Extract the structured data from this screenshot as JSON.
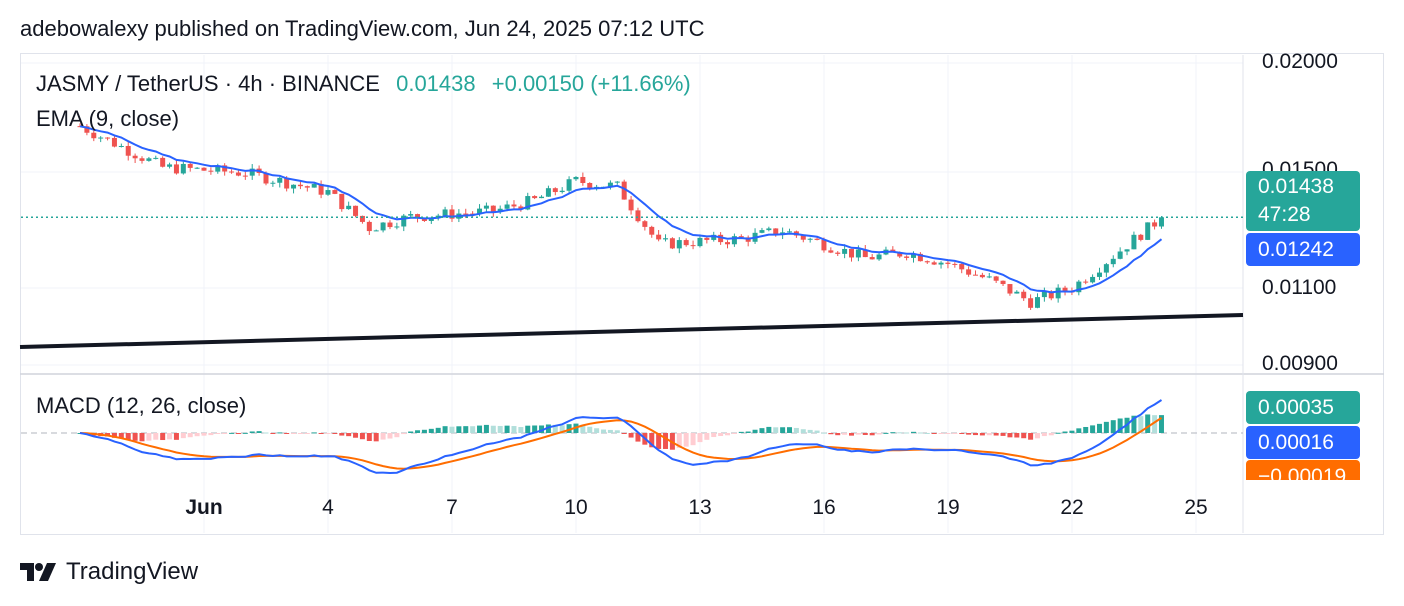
{
  "publish_line": "adebowalexy published on TradingView.com, Jun 24, 2025 07:12 UTC",
  "header": {
    "symbol": "JASMY / TetherUS · 4h · BINANCE",
    "price": "0.01438",
    "change": "+0.00150 (+11.66%)"
  },
  "indicators": {
    "ema_label": "EMA (9, close)",
    "macd_label": "MACD (12, 26, close)"
  },
  "price_tags": {
    "last_price": "0.01438",
    "countdown": "47:28",
    "ema_value": "0.01242",
    "macd_hist": "0.00035",
    "macd_value": "0.00016",
    "signal_value": "−0.00019"
  },
  "y_axis": [
    "0.02000",
    "0.01500",
    "0.01100",
    "0.00900"
  ],
  "x_axis": [
    {
      "label": "Jun",
      "bold": true
    },
    {
      "label": "4",
      "bold": false
    },
    {
      "label": "7",
      "bold": false
    },
    {
      "label": "10",
      "bold": false
    },
    {
      "label": "13",
      "bold": false
    },
    {
      "label": "16",
      "bold": false
    },
    {
      "label": "19",
      "bold": false
    },
    {
      "label": "22",
      "bold": false
    },
    {
      "label": "25",
      "bold": false
    }
  ],
  "brand": {
    "name": "TradingView",
    "logo_icon": "tradingview-logo-icon"
  },
  "colors": {
    "up": "#26a69a",
    "down": "#ef5350",
    "ema": "#2962ff",
    "signal": "#ff6d00",
    "trendline": "#131722"
  },
  "chart_data": {
    "type": "candlestick",
    "title": "JASMY / TetherUS · 4h · BINANCE",
    "ylim": [
      0.009,
      0.02
    ],
    "price_series_approx": [
      {
        "date": "May 30",
        "close": 0.0177
      },
      {
        "date": "Jun 1",
        "close": 0.0162
      },
      {
        "date": "Jun 3",
        "close": 0.016
      },
      {
        "date": "Jun 5",
        "close": 0.0153
      },
      {
        "date": "Jun 6",
        "close": 0.014
      },
      {
        "date": "Jun 7",
        "close": 0.0144
      },
      {
        "date": "Jun 9",
        "close": 0.0146
      },
      {
        "date": "Jun 10",
        "close": 0.015
      },
      {
        "date": "Jun 11",
        "close": 0.0157
      },
      {
        "date": "Jun 12",
        "close": 0.0155
      },
      {
        "date": "Jun 13",
        "close": 0.0134
      },
      {
        "date": "Jun 15",
        "close": 0.0136
      },
      {
        "date": "Jun 16",
        "close": 0.0139
      },
      {
        "date": "Jun 18",
        "close": 0.0129
      },
      {
        "date": "Jun 19",
        "close": 0.0131
      },
      {
        "date": "Jun 20",
        "close": 0.0127
      },
      {
        "date": "Jun 21",
        "close": 0.0121
      },
      {
        "date": "Jun 22",
        "close": 0.0113
      },
      {
        "date": "Jun 23",
        "close": 0.0118
      },
      {
        "date": "Jun 24",
        "close": 0.01438
      }
    ],
    "ema_9_last": 0.01242,
    "macd": {
      "histogram": 0.00035,
      "macd": 0.00016,
      "signal": -0.00019
    }
  }
}
